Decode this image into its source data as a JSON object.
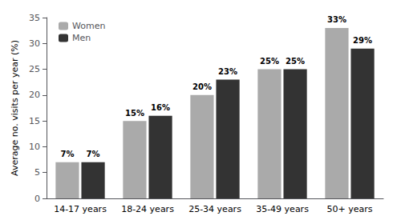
{
  "chart_data": {
    "type": "bar",
    "categories": [
      "14-17 years",
      "18-24 years",
      "25-34 years",
      "35-49 years",
      "50+ years"
    ],
    "ylabel": "Average no. visits per year (%)",
    "series": [
      {
        "name": "Women",
        "color": "#aaaaaa",
        "values": [
          7,
          15,
          20,
          25,
          33
        ],
        "value_labels": [
          "7%",
          "15%",
          "20%",
          "25%",
          "33%"
        ]
      },
      {
        "name": "Men",
        "color": "#333333",
        "values": [
          7,
          16,
          23,
          25,
          29
        ],
        "value_labels": [
          "7%",
          "16%",
          "23%",
          "25%",
          "29%"
        ]
      }
    ],
    "ylim": [
      0,
      35
    ],
    "yticks": [
      0,
      5,
      10,
      15,
      20,
      25,
      30,
      35
    ],
    "grid": false,
    "legend": "upper left",
    "data_labels": true
  }
}
